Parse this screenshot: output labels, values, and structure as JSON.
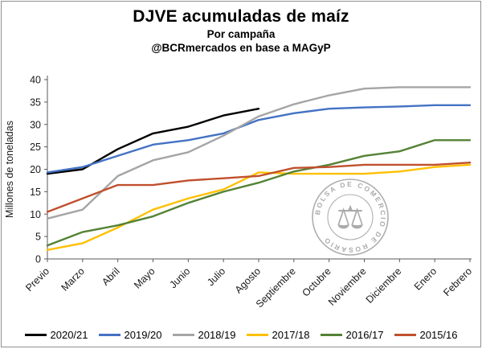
{
  "header": {
    "title": "DJVE acumuladas de maíz",
    "subtitle": "Por campaña",
    "source_line": "@BCRmercados en base a MAGyP"
  },
  "watermark": {
    "text": "BOLSA DE COMERCIO DE ROSARIO",
    "symbol": "scales-caduceus"
  },
  "chart_data": {
    "type": "line",
    "title": "DJVE acumuladas de maíz",
    "subtitle": "Por campaña",
    "source": "@BCRmercados en base a MAGyP",
    "xlabel": "",
    "ylabel": "Millones de toneladas",
    "ylim": [
      0,
      40
    ],
    "ytick_step": 5,
    "grid": false,
    "legend_position": "bottom",
    "categories": [
      "Previo",
      "Marzo",
      "Abril",
      "Mayo",
      "Junio",
      "Julio",
      "Agosto",
      "Septiembre",
      "Octubre",
      "Noviembre",
      "Diciembre",
      "Enero",
      "Febrero"
    ],
    "series": [
      {
        "name": "2020/21",
        "color": "#000000",
        "values": [
          19,
          20,
          24.5,
          28,
          29.5,
          32,
          33.5,
          null,
          null,
          null,
          null,
          null,
          null
        ]
      },
      {
        "name": "2019/20",
        "color": "#4472C4",
        "values": [
          19.3,
          20.5,
          23,
          25.5,
          26.5,
          28,
          31,
          32.5,
          33.5,
          33.8,
          34,
          34.3,
          34.3
        ]
      },
      {
        "name": "2018/19",
        "color": "#A5A5A5",
        "values": [
          9,
          11,
          18.5,
          22,
          23.8,
          27.5,
          31.8,
          34.5,
          36.5,
          38,
          38.3,
          38.3,
          38.3
        ]
      },
      {
        "name": "2017/18",
        "color": "#FFC000",
        "values": [
          2,
          3.5,
          7,
          11,
          13.5,
          15.5,
          19.3,
          19,
          19,
          19,
          19.5,
          20.5,
          21
        ]
      },
      {
        "name": "2016/17",
        "color": "#548235",
        "values": [
          3,
          6,
          7.5,
          9.5,
          12.5,
          15,
          17,
          19.5,
          21,
          23,
          24,
          26.5,
          26.5
        ]
      },
      {
        "name": "2015/16",
        "color": "#C0502D",
        "values": [
          10.5,
          13.5,
          16.5,
          16.5,
          17.5,
          18,
          18.5,
          20.3,
          20.5,
          21,
          21,
          21,
          21.5
        ]
      }
    ]
  }
}
